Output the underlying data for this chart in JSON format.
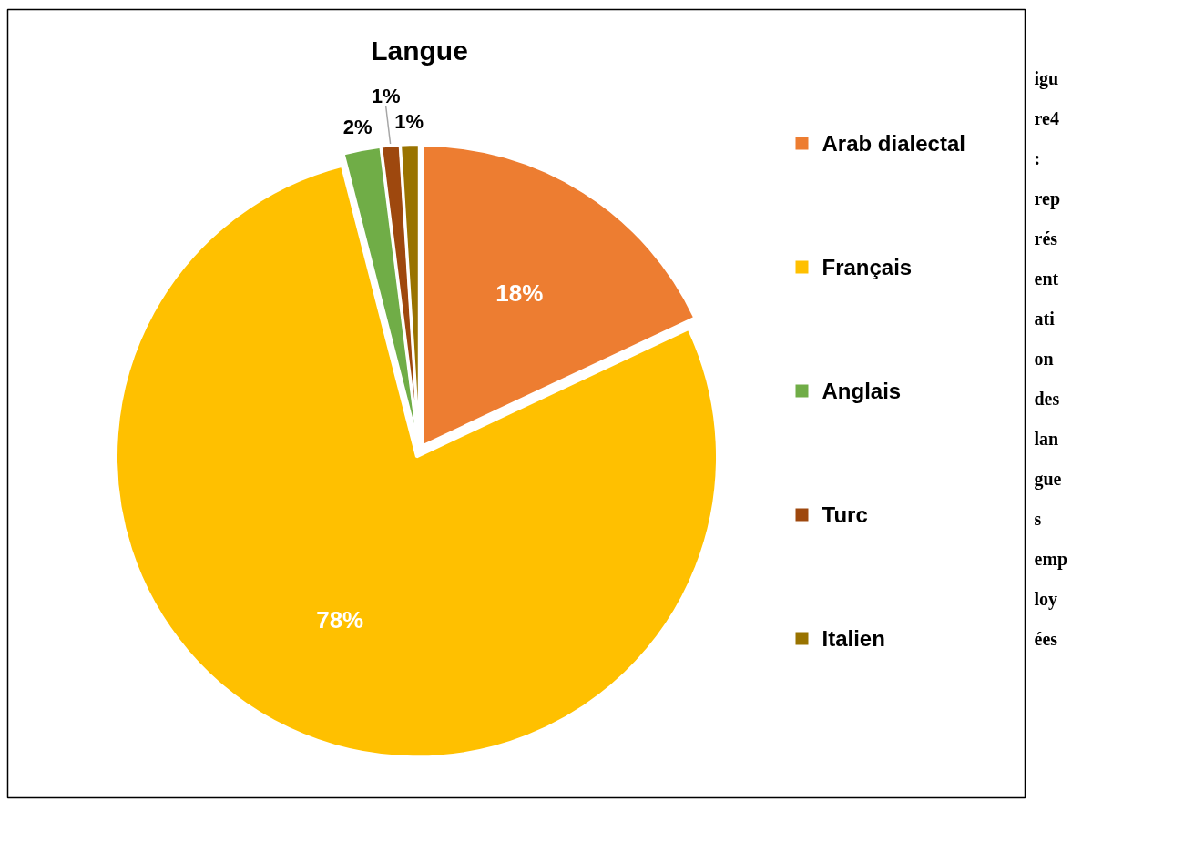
{
  "chart_data": {
    "type": "pie",
    "title": "Langue",
    "categories": [
      "Arab dialectal",
      "Français",
      "Anglais",
      "Turc",
      "Italien"
    ],
    "values": [
      18,
      78,
      2,
      1,
      1
    ],
    "colors": [
      "#ed7d31",
      "#ffc000",
      "#70ad47",
      "#9e480e",
      "#997300"
    ],
    "value_labels": [
      "18%",
      "78%",
      "2%",
      "1%",
      "1%"
    ],
    "legend": "right",
    "annotations": [
      "igure4 : représentation des langues employées"
    ]
  }
}
